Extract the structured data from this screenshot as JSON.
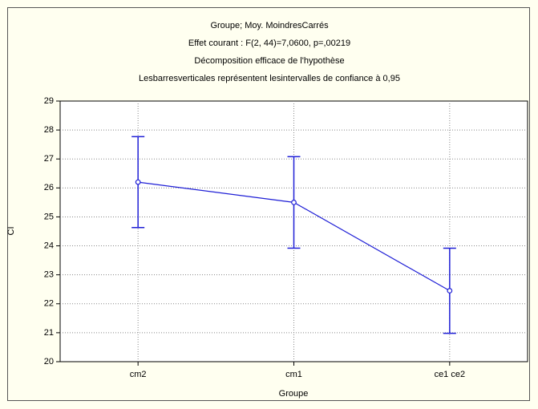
{
  "chart_data": {
    "type": "line_errorbar",
    "title_lines": [
      "Groupe; Moy. MoindresCarrés",
      "Effet courant : F(2, 44)=7,0600, p=,00219",
      "Décomposition efficace de l'hypothèse",
      "Lesbarresverticales représentent lesintervalles de confiance à 0,95"
    ],
    "xlabel": "Groupe",
    "ylabel": "CI",
    "categories": [
      "cm2",
      "cm1",
      "ce1 ce2"
    ],
    "values": [
      26.2,
      25.5,
      22.45
    ],
    "errors": [
      1.57,
      1.58,
      1.47
    ],
    "color": "#1f1fd6",
    "ylim": [
      20,
      29
    ],
    "yticks": [
      20,
      21,
      22,
      23,
      24,
      25,
      26,
      27,
      28,
      29
    ],
    "grid": true
  }
}
